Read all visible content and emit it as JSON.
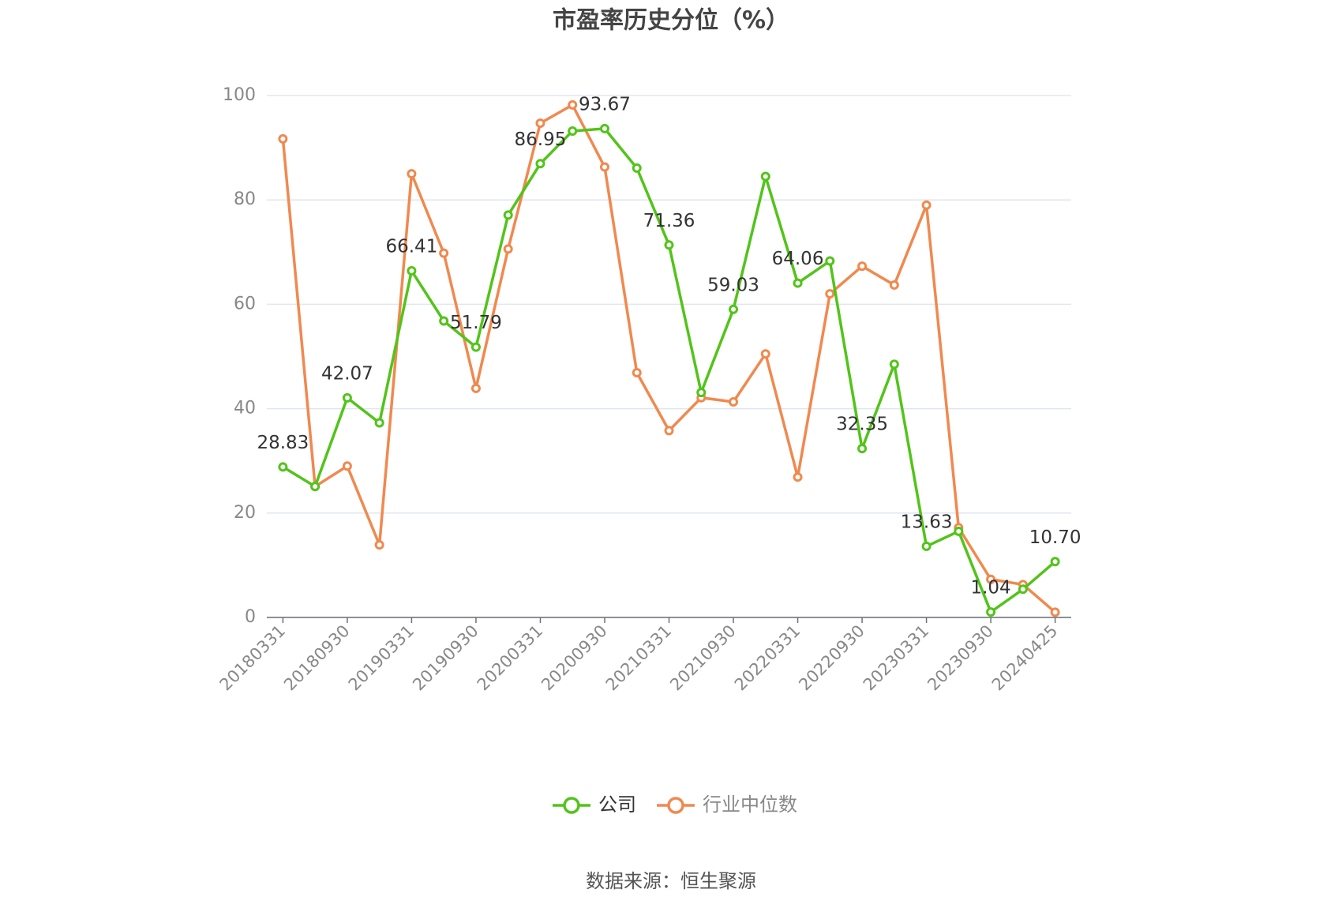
{
  "chart_data": {
    "type": "line",
    "title": "市盈率历史分位（%）",
    "source": "数据来源：恒生聚源",
    "categories": [
      "20180331",
      null,
      "20180930",
      null,
      "20190331",
      null,
      "20190930",
      null,
      "20200331",
      null,
      "20200930",
      null,
      "20210331",
      null,
      "20210930",
      null,
      "20220331",
      null,
      "20220930",
      null,
      "20230331",
      null,
      "20230930",
      null,
      "20240425"
    ],
    "series": [
      {
        "name": "公司",
        "color": "#52c41a",
        "values": [
          28.83,
          25.1,
          42.07,
          37.3,
          66.41,
          56.8,
          51.79,
          77.1,
          86.95,
          93.2,
          93.67,
          86.1,
          71.36,
          43.1,
          59.03,
          84.5,
          64.06,
          68.3,
          32.35,
          48.5,
          13.63,
          16.5,
          1.04,
          5.4,
          10.7
        ],
        "value_labels": [
          "28.83",
          null,
          "42.07",
          null,
          "66.41",
          null,
          "51.79",
          null,
          "86.95",
          null,
          "93.67",
          null,
          "71.36",
          null,
          "59.03",
          null,
          "64.06",
          null,
          "32.35",
          null,
          "13.63",
          null,
          "1.04",
          null,
          "10.70"
        ]
      },
      {
        "name": "行业中位数",
        "color": "#f0894f",
        "values": [
          91.7,
          25.1,
          29.0,
          13.9,
          85.0,
          69.8,
          43.9,
          70.6,
          94.7,
          98.2,
          86.3,
          46.9,
          35.8,
          42.1,
          41.3,
          50.5,
          26.9,
          62.0,
          67.3,
          63.7,
          79.0,
          17.2,
          7.3,
          6.3,
          1.0
        ]
      }
    ],
    "ylim": [
      0,
      100
    ],
    "yticks": [
      0,
      20,
      40,
      60,
      80,
      100
    ],
    "grid": true
  }
}
